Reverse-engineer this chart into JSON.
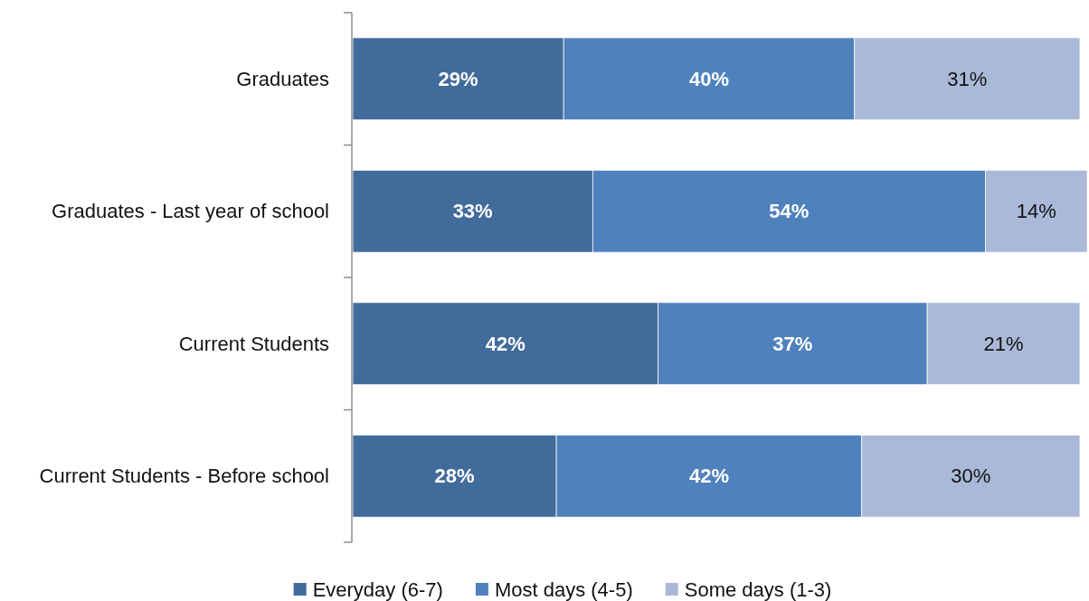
{
  "chart_data": {
    "type": "bar",
    "orientation": "horizontal",
    "stacked": true,
    "categories": [
      "Graduates",
      "Graduates - Last year of school",
      "Current Students",
      "Current Students - Before school"
    ],
    "series": [
      {
        "name": "Everyday (6-7)",
        "color": "#416b9b",
        "values": [
          29,
          33,
          42,
          28
        ],
        "value_labels": [
          "29%",
          "33%",
          "42%",
          "28%"
        ]
      },
      {
        "name": "Most days (4-5)",
        "color": "#4f81bd",
        "values": [
          40,
          54,
          37,
          42
        ],
        "value_labels": [
          "40%",
          "54%",
          "37%",
          "42%"
        ]
      },
      {
        "name": "Some days (1-3)",
        "color": "#aab9d7",
        "values": [
          31,
          14,
          21,
          30
        ],
        "value_labels": [
          "31%",
          "14%",
          "21%",
          "30%"
        ]
      }
    ],
    "xlim": [
      0,
      101
    ],
    "tick_labels": "y",
    "legend": "bottom"
  }
}
